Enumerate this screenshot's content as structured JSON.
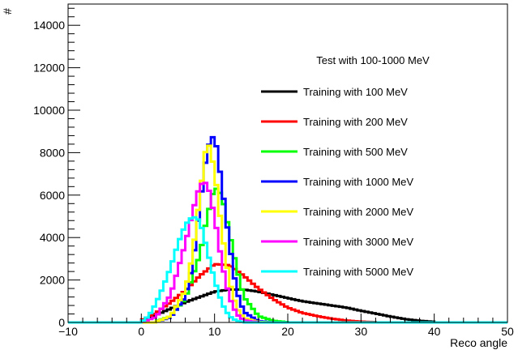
{
  "chart_data": {
    "type": "line",
    "title": "",
    "xlabel": "Reco angle",
    "ylabel": "#",
    "xlim": [
      -10,
      50
    ],
    "ylim": [
      0,
      15000
    ],
    "x_ticks": [
      "−10",
      "0",
      "10",
      "20",
      "30",
      "40",
      "50"
    ],
    "y_ticks": [
      "0",
      "2000",
      "4000",
      "6000",
      "8000",
      "10000",
      "12000",
      "14000"
    ],
    "grid": false,
    "legend_position": "top-right",
    "legend_header": "Test with 100-1000 MeV",
    "series": [
      {
        "name": "Training with 100 MeV",
        "color": "#000000",
        "x": [
          0,
          2,
          4,
          6,
          8,
          10,
          12,
          14,
          16,
          18,
          20,
          22,
          24,
          26,
          28,
          30,
          32,
          34,
          36,
          38,
          40
        ],
        "y": [
          100,
          350,
          650,
          950,
          1200,
          1450,
          1550,
          1550,
          1450,
          1300,
          1150,
          1000,
          900,
          800,
          700,
          550,
          420,
          280,
          160,
          80,
          30
        ]
      },
      {
        "name": "Training with 200 MeV",
        "color": "#ff0000",
        "x": [
          0,
          2,
          4,
          6,
          8,
          10,
          12,
          14,
          16,
          18,
          20,
          22,
          24,
          26,
          28,
          30,
          32
        ],
        "y": [
          100,
          450,
          950,
          1500,
          2200,
          2750,
          2700,
          2200,
          1600,
          1100,
          700,
          450,
          300,
          180,
          90,
          40,
          15
        ]
      },
      {
        "name": "Training with 500 MeV",
        "color": "#00ff00",
        "x": [
          2,
          4,
          6,
          8,
          9,
          10,
          11,
          12,
          13,
          14,
          16,
          18,
          20
        ],
        "y": [
          50,
          300,
          1100,
          3200,
          5000,
          6400,
          6000,
          4300,
          2600,
          1200,
          300,
          80,
          10
        ]
      },
      {
        "name": "Training with 1000 MeV",
        "color": "#0000ff",
        "x": [
          2,
          4,
          6,
          7,
          8,
          9,
          10,
          11,
          12,
          13,
          14,
          16,
          18
        ],
        "y": [
          20,
          250,
          1200,
          2700,
          5500,
          8200,
          8900,
          6500,
          3800,
          1500,
          500,
          60,
          5
        ]
      },
      {
        "name": "Training with 2000 MeV",
        "color": "#ffff00",
        "x": [
          2,
          4,
          6,
          7,
          8,
          9,
          10,
          11,
          12,
          13,
          14,
          16,
          18
        ],
        "y": [
          20,
          300,
          1500,
          3200,
          6000,
          8700,
          7200,
          4300,
          2000,
          700,
          200,
          20,
          2
        ]
      },
      {
        "name": "Training with 3000 MeV",
        "color": "#ff00ff",
        "x": [
          0,
          2,
          4,
          6,
          7,
          8,
          9,
          10,
          11,
          12,
          13,
          14,
          16
        ],
        "y": [
          10,
          250,
          1300,
          3700,
          5200,
          6500,
          6600,
          5000,
          2800,
          1200,
          400,
          100,
          10
        ]
      },
      {
        "name": "Training with 5000 MeV",
        "color": "#00ffff",
        "x": [
          0,
          1,
          2,
          3,
          4,
          5,
          6,
          7,
          8,
          9,
          10,
          11,
          12,
          13,
          14
        ],
        "y": [
          20,
          300,
          900,
          1700,
          2600,
          3700,
          4600,
          5000,
          4800,
          3400,
          2000,
          900,
          300,
          80,
          10
        ]
      }
    ]
  }
}
